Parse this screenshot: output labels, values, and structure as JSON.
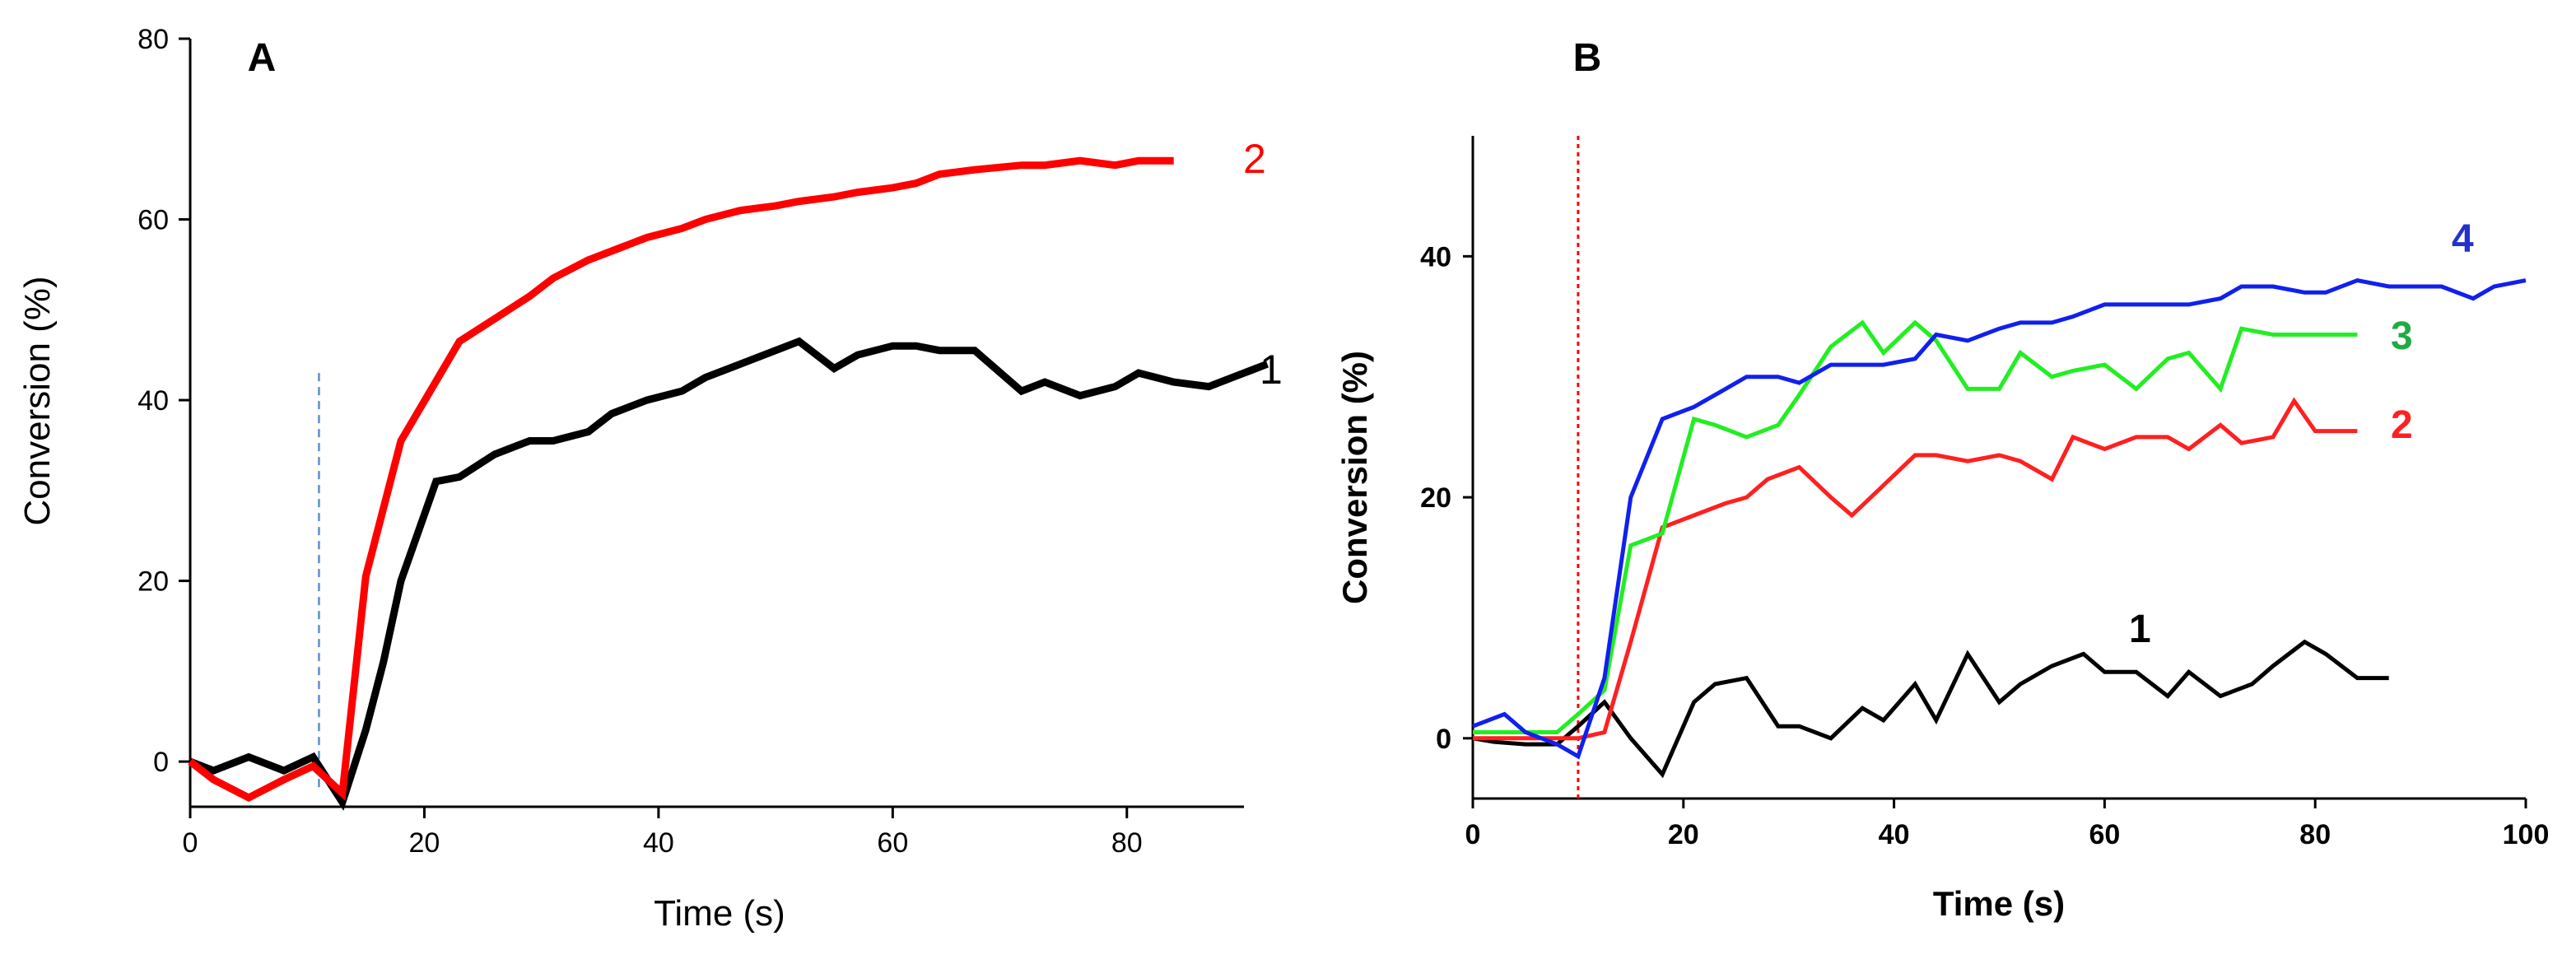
{
  "chart_data": [
    {
      "panel": "A",
      "type": "line",
      "xlabel": "Time (s)",
      "ylabel": "Conversion (%)",
      "xlim": [
        0,
        90
      ],
      "ylim": [
        -5,
        80
      ],
      "xticks": [
        0,
        20,
        40,
        60,
        80
      ],
      "yticks": [
        0,
        20,
        40,
        60,
        80
      ],
      "marker_line": {
        "x": 11,
        "y_range": [
          -3,
          43
        ],
        "color": "#5b8fd0",
        "style": "dashed"
      },
      "series": [
        {
          "name": "1",
          "color": "#000000",
          "x": [
            0,
            2,
            5,
            8,
            10.5,
            13,
            15,
            16.5,
            18,
            21,
            23,
            26,
            29,
            31,
            34,
            36,
            39,
            42,
            44,
            47,
            50,
            52,
            55,
            57,
            60,
            62,
            64,
            67,
            71,
            73,
            76,
            79,
            81,
            84,
            87,
            89,
            92
          ],
          "y": [
            0,
            -1,
            0.5,
            -1,
            0.5,
            -4.5,
            3.5,
            11,
            20,
            31,
            31.5,
            34,
            35.5,
            35.5,
            36.5,
            38.5,
            40,
            41,
            42.5,
            44,
            45.5,
            46.5,
            43.5,
            45,
            46,
            46,
            45.5,
            45.5,
            41,
            42,
            40.5,
            41.5,
            43,
            42,
            41.5,
            42.5,
            44
          ]
        },
        {
          "name": "2",
          "color": "#ff0000",
          "x": [
            0,
            2,
            5,
            8,
            10.5,
            13,
            15,
            18,
            20.5,
            23,
            26,
            29,
            31,
            34,
            37,
            39,
            42,
            44,
            47,
            50,
            52,
            55,
            57,
            60,
            62,
            64,
            67,
            71,
            73,
            76,
            79,
            81,
            84
          ],
          "y": [
            0,
            -2,
            -4,
            -2,
            -0.5,
            -3.5,
            20.5,
            35.5,
            41,
            46.5,
            49,
            51.5,
            53.5,
            55.5,
            57,
            58,
            59,
            60,
            61,
            61.5,
            62,
            62.5,
            63,
            63.5,
            64,
            65,
            65.5,
            66,
            66,
            66.5,
            66,
            66.5,
            66.5
          ]
        }
      ]
    },
    {
      "panel": "B",
      "type": "line",
      "xlabel": "Time (s)",
      "ylabel": "Conversion (%)",
      "xlim": [
        0,
        100
      ],
      "ylim": [
        -5,
        50
      ],
      "xticks": [
        0,
        20,
        40,
        60,
        80,
        100
      ],
      "yticks": [
        0,
        20,
        40
      ],
      "marker_line": {
        "x": 10,
        "y_range": [
          -5,
          50
        ],
        "color": "#ff0000",
        "style": "dotted"
      },
      "series": [
        {
          "name": "1",
          "color": "#000000",
          "x": [
            0,
            2,
            5,
            8,
            10,
            12.5,
            15,
            18,
            21,
            23,
            26,
            29,
            31,
            34,
            37,
            39,
            42,
            44,
            47,
            50,
            52,
            55,
            58,
            60,
            63,
            66,
            68,
            71,
            74,
            76,
            79,
            81,
            84,
            87
          ],
          "y": [
            0,
            -0.3,
            -0.5,
            -0.5,
            1,
            3,
            0,
            -3,
            3,
            4.5,
            5,
            1,
            1,
            0,
            2.5,
            1.5,
            4.5,
            1.5,
            7,
            3,
            4.5,
            6,
            7,
            5.5,
            5.5,
            3.5,
            5.5,
            3.5,
            4.5,
            6,
            8,
            7,
            5,
            5
          ]
        },
        {
          "name": "2",
          "color": "#ff2020",
          "x": [
            0,
            3,
            5,
            8,
            10,
            12.5,
            15,
            18,
            21,
            24,
            26,
            28,
            31,
            34,
            36,
            39,
            42,
            44,
            47,
            50,
            52,
            55,
            57,
            60,
            63,
            66,
            68,
            71,
            73,
            76,
            78,
            80,
            84
          ],
          "y": [
            0,
            0,
            0,
            0,
            0,
            0.5,
            8,
            17.5,
            18.5,
            19.5,
            20,
            21.5,
            22.5,
            20,
            18.5,
            21,
            23.5,
            23.5,
            23,
            23.5,
            23,
            21.5,
            25,
            24,
            25,
            25,
            24,
            26,
            24.5,
            25,
            28,
            25.5,
            25.5
          ]
        },
        {
          "name": "3",
          "color": "#22ee22",
          "label_color": "#22aa44",
          "x": [
            0,
            3,
            5,
            8,
            10,
            12.5,
            15,
            16.5,
            18,
            21,
            23,
            26,
            29,
            31,
            34,
            37,
            39,
            42,
            44,
            47,
            50,
            52,
            55,
            57,
            60,
            63,
            66,
            68,
            71,
            73,
            76,
            79,
            81,
            84
          ],
          "y": [
            0.5,
            0.5,
            0.5,
            0.5,
            2,
            4,
            16,
            16.5,
            17,
            26.5,
            26,
            25,
            26,
            28.5,
            32.5,
            34.5,
            32,
            34.5,
            33,
            29,
            29,
            32,
            30,
            30.5,
            31,
            29,
            31.5,
            32,
            29,
            34,
            33.5,
            33.5,
            33.5,
            33.5
          ]
        },
        {
          "name": "4",
          "color": "#1020ee",
          "label_color": "#2233cc",
          "x": [
            0,
            3,
            5,
            8,
            10,
            12.5,
            15,
            18,
            21,
            24,
            26,
            29,
            31,
            34,
            37,
            39,
            42,
            44,
            47,
            50,
            52,
            55,
            57,
            60,
            63,
            66,
            68,
            71,
            73,
            76,
            79,
            81,
            84,
            87,
            90,
            92,
            95,
            97,
            100
          ],
          "y": [
            1,
            2,
            0.5,
            -0.5,
            -1.5,
            5,
            20,
            26.5,
            27.5,
            29,
            30,
            30,
            29.5,
            31,
            31,
            31,
            31.5,
            33.5,
            33,
            34,
            34.5,
            34.5,
            35,
            36,
            36,
            36,
            36,
            36.5,
            37.5,
            37.5,
            37,
            37,
            38,
            37.5,
            37.5,
            37.5,
            36.5,
            37.5,
            38
          ]
        }
      ]
    }
  ]
}
